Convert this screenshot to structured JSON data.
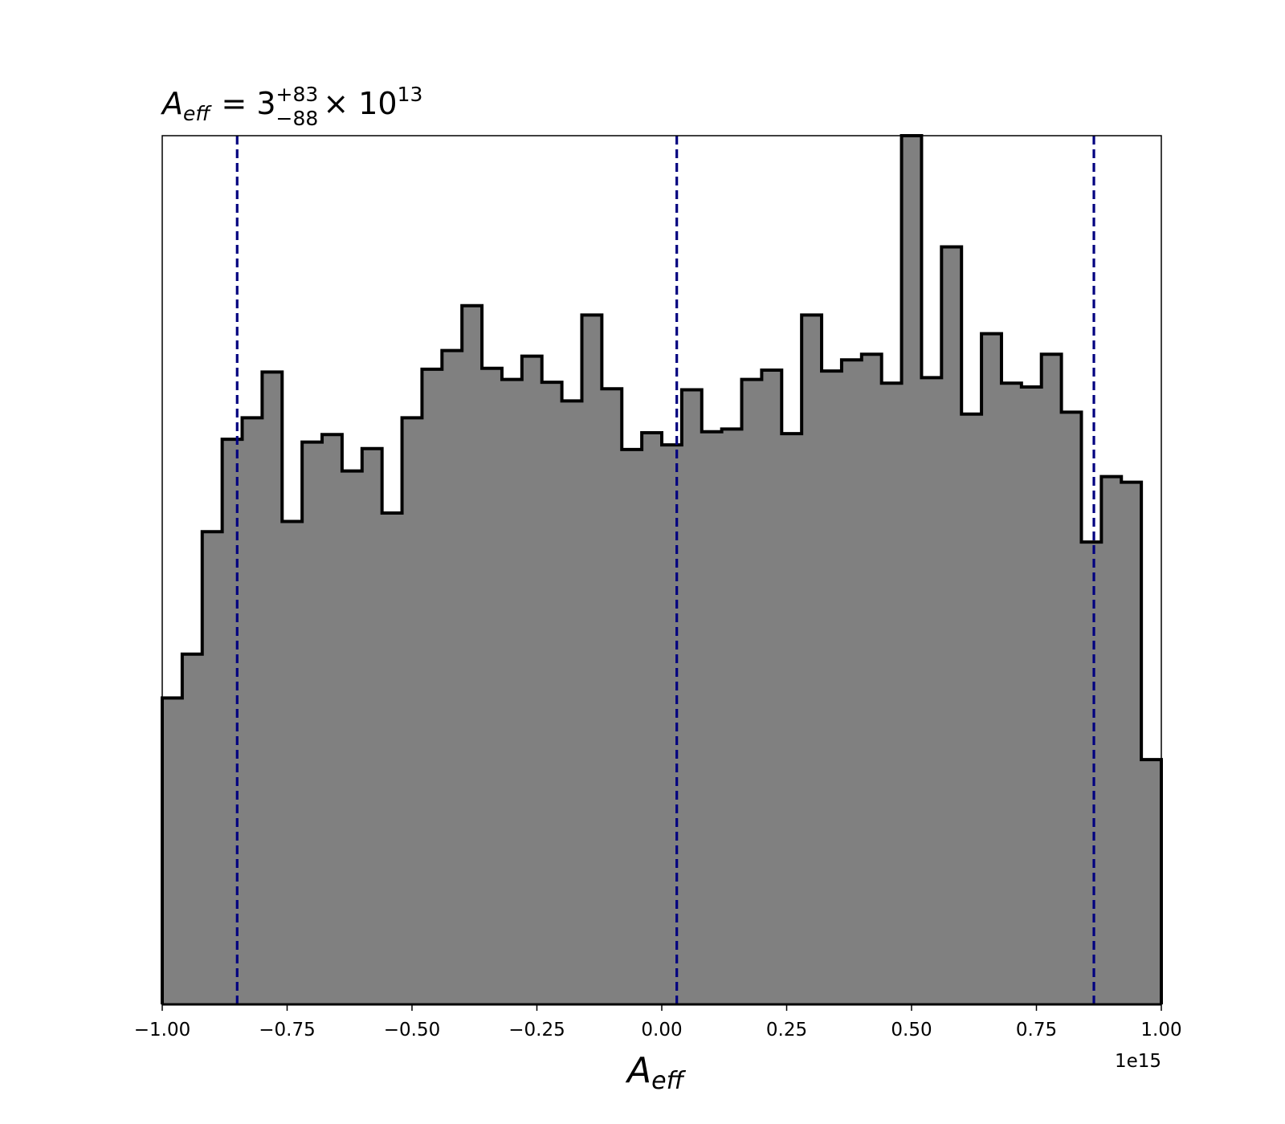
{
  "chart_data": {
    "type": "histogram",
    "title": {
      "symbol": "A",
      "symbol_sub": "eff",
      "eq": "= 3",
      "sup": "+83",
      "sub": "−88",
      "times": "× 10",
      "exp": "13"
    },
    "xlabel": {
      "symbol": "A",
      "sub": "eff"
    },
    "x_offset_label": "1e15",
    "xlim": [
      -1.0,
      1.0
    ],
    "ylim": [
      0,
      93
    ],
    "xticks": [
      -1.0,
      -0.75,
      -0.5,
      -0.25,
      0.0,
      0.25,
      0.5,
      0.75,
      1.0
    ],
    "xtick_labels": [
      "−1.00",
      "−0.75",
      "−0.50",
      "−0.25",
      "0.00",
      "0.25",
      "0.50",
      "0.75",
      "1.00"
    ],
    "yticks_visible": false,
    "bin_edges": [
      -1.0,
      -0.96,
      -0.92,
      -0.88,
      -0.84,
      -0.8,
      -0.76,
      -0.72,
      -0.68,
      -0.64,
      -0.6,
      -0.56,
      -0.52,
      -0.48,
      -0.44,
      -0.4,
      -0.36,
      -0.32,
      -0.28,
      -0.24,
      -0.2,
      -0.16,
      -0.12,
      -0.08,
      -0.04,
      0.0,
      0.04,
      0.08,
      0.12,
      0.16,
      0.2,
      0.24,
      0.28,
      0.32,
      0.36,
      0.4,
      0.44,
      0.48,
      0.52,
      0.56,
      0.6,
      0.64,
      0.68,
      0.72,
      0.76,
      0.8,
      0.84,
      0.88,
      0.92,
      0.96,
      1.0
    ],
    "counts": [
      32.8,
      37.5,
      50.6,
      60.5,
      62.8,
      67.7,
      51.7,
      60.2,
      61.0,
      57.1,
      59.5,
      52.6,
      62.8,
      68.0,
      70.0,
      74.8,
      68.1,
      66.9,
      69.4,
      66.6,
      64.6,
      73.8,
      65.9,
      59.4,
      61.2,
      59.9,
      65.8,
      61.3,
      61.6,
      66.9,
      67.9,
      61.1,
      73.8,
      67.8,
      69.0,
      69.6,
      66.5,
      93.0,
      67.1,
      81.1,
      63.2,
      71.8,
      66.5,
      66.1,
      69.6,
      63.4,
      49.5,
      56.5,
      55.9,
      26.2
    ],
    "quantile_lines": [
      -0.85,
      0.03,
      0.865
    ],
    "colors": {
      "fill": "#808080",
      "edge": "#000000",
      "quantile": "#000080"
    }
  }
}
